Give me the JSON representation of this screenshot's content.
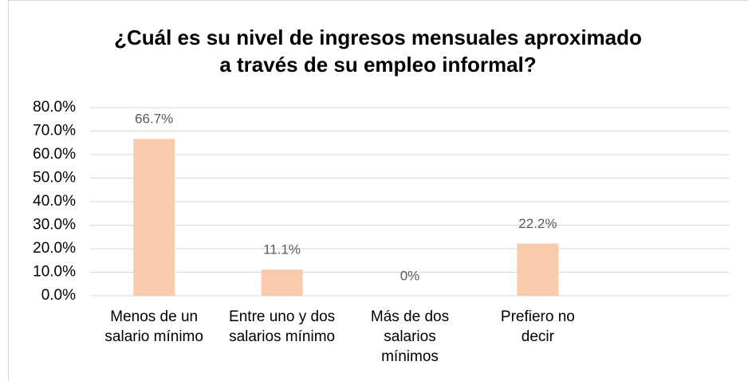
{
  "chart_data": {
    "type": "bar",
    "title": "¿Cuál es su nivel de ingresos mensuales aproximado a través de su empleo informal?",
    "categories": [
      "Menos de un salario mínimo",
      "Entre uno y dos salarios mínimo",
      "Más de dos salarios mínimos",
      "Prefiero no decir",
      null
    ],
    "values": [
      66.7,
      11.1,
      0,
      22.2,
      null
    ],
    "value_labels": [
      "66.7%",
      "11.1%",
      "0%",
      "22.2%",
      null
    ],
    "color": "#f8cbad",
    "ylim": [
      0,
      80
    ],
    "yticks": [
      {
        "value": 0,
        "label": "0.0%"
      },
      {
        "value": 10,
        "label": "10.0%"
      },
      {
        "value": 20,
        "label": "20.0%"
      },
      {
        "value": 30,
        "label": "30.0%"
      },
      {
        "value": 40,
        "label": "40.0%"
      },
      {
        "value": 50,
        "label": "50.0%"
      },
      {
        "value": 60,
        "label": "60.0%"
      },
      {
        "value": 70,
        "label": "70.0%"
      },
      {
        "value": 80,
        "label": "80.0%"
      }
    ],
    "grid": true
  }
}
